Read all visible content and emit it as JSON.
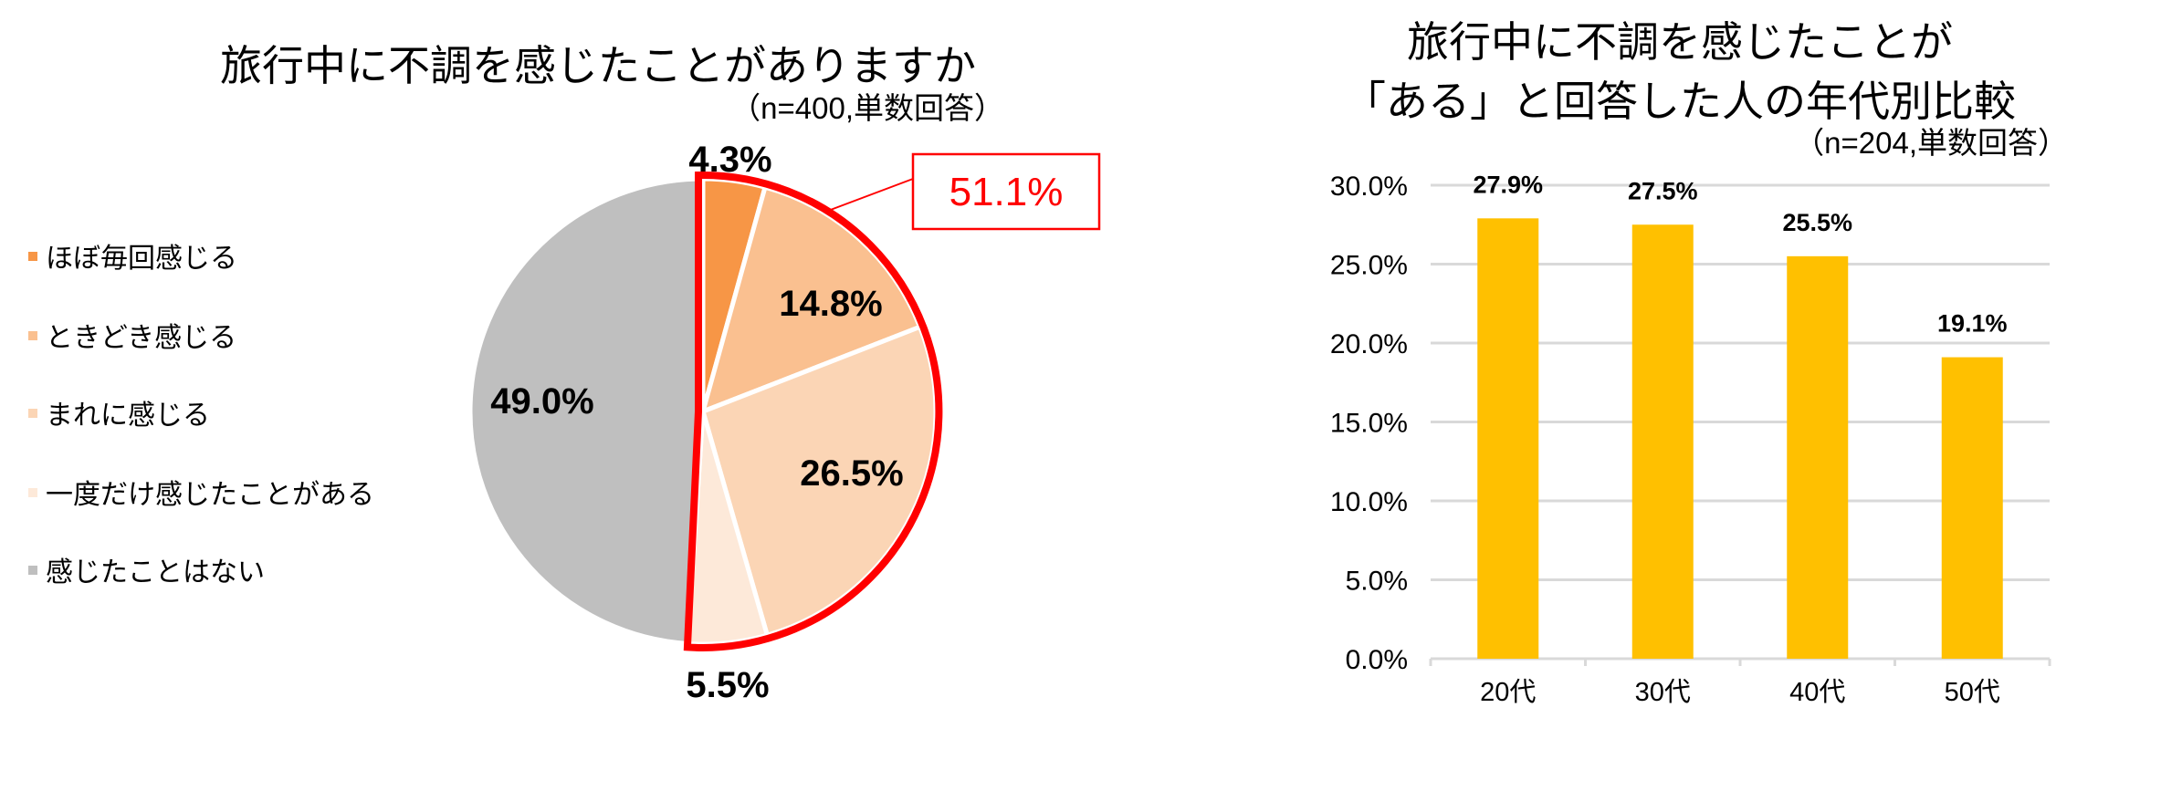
{
  "chart_data": [
    {
      "type": "pie",
      "title": "旅行中に不調を感じたことがありますか",
      "subtitle": "（n=400,単数回答）",
      "categories": [
        "ほぼ毎回感じる",
        "ときどき感じる",
        "まれに感じる",
        "一度だけ感じたことがある",
        "感じたことはない"
      ],
      "values": [
        4.3,
        14.8,
        26.5,
        5.5,
        49.0
      ],
      "labels": [
        "4.3%",
        "14.8%",
        "26.5%",
        "5.5%",
        "49.0%"
      ],
      "colors": [
        "#F79646",
        "#FAC090",
        "#FBD5B5",
        "#FDE9D9",
        "#BFBFBF"
      ],
      "legend": "left",
      "annotation": {
        "text": "51.1%",
        "color": "#FF0000",
        "highlights": [
          "ほぼ毎回感じる",
          "ときどき感じる",
          "まれに感じる",
          "一度だけ感じたことがある"
        ]
      }
    },
    {
      "type": "bar",
      "title": [
        "旅行中に不調を感じたことが",
        "「ある」と回答した人の年代別比較"
      ],
      "subtitle": "（n=204,単数回答）",
      "categories": [
        "20代",
        "30代",
        "40代",
        "50代"
      ],
      "values": [
        27.9,
        27.5,
        25.5,
        19.1
      ],
      "labels": [
        "27.9%",
        "27.5%",
        "25.5%",
        "19.1%"
      ],
      "yticks": [
        "0.0%",
        "5.0%",
        "10.0%",
        "15.0%",
        "20.0%",
        "25.0%",
        "30.0%"
      ],
      "ylim": [
        0,
        30
      ],
      "grid": true,
      "color": "#FFC000",
      "grid_color": "#D9D9D9"
    }
  ]
}
